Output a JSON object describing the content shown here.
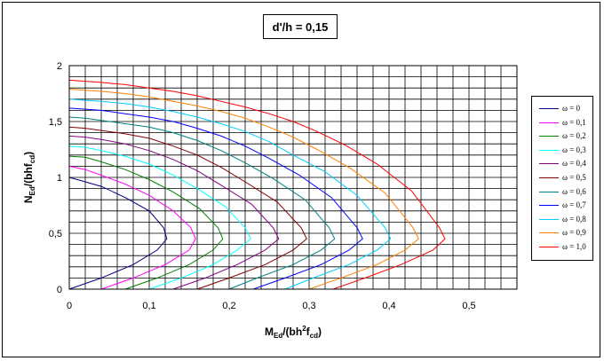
{
  "chart_data": {
    "type": "line",
    "title": "d'/h = 0,15",
    "xlabel": {
      "main": "M",
      "sub1": "Ed",
      "mid": "/(bh",
      "sup": "2",
      "post": "f",
      "sub2": "cd",
      "end": ")"
    },
    "ylabel": {
      "main": "N",
      "sub1": "Ed",
      "mid": "/(bhf",
      "sub2": "cd",
      "end": ")"
    },
    "xlim": [
      0,
      0.56
    ],
    "ylim": [
      0,
      2
    ],
    "xticks": [
      {
        "v": 0,
        "label": "0"
      },
      {
        "v": 0.1,
        "label": "0,1"
      },
      {
        "v": 0.2,
        "label": "0,2"
      },
      {
        "v": 0.3,
        "label": "0,3"
      },
      {
        "v": 0.4,
        "label": "0,4"
      },
      {
        "v": 0.5,
        "label": "0,5"
      }
    ],
    "yticks": [
      {
        "v": 0,
        "label": "0"
      },
      {
        "v": 0.5,
        "label": "0,5"
      },
      {
        "v": 1,
        "label": "1"
      },
      {
        "v": 1.5,
        "label": "1,5"
      },
      {
        "v": 2,
        "label": "2"
      }
    ],
    "grid": true,
    "legend_position": "right",
    "series": [
      {
        "name": "ω = 0",
        "color": "#000080",
        "points": [
          [
            0,
            0
          ],
          [
            0.04,
            0.1
          ],
          [
            0.08,
            0.22
          ],
          [
            0.11,
            0.35
          ],
          [
            0.122,
            0.45
          ],
          [
            0.118,
            0.55
          ],
          [
            0.1,
            0.7
          ],
          [
            0.07,
            0.82
          ],
          [
            0.04,
            0.92
          ],
          [
            0.02,
            0.96
          ],
          [
            0,
            1
          ]
        ]
      },
      {
        "name": "ω = 0,1",
        "color": "#FF00FF",
        "points": [
          [
            0.04,
            0
          ],
          [
            0.08,
            0.1
          ],
          [
            0.12,
            0.22
          ],
          [
            0.15,
            0.35
          ],
          [
            0.158,
            0.45
          ],
          [
            0.152,
            0.55
          ],
          [
            0.13,
            0.7
          ],
          [
            0.1,
            0.84
          ],
          [
            0.07,
            0.94
          ],
          [
            0.04,
            1.02
          ],
          [
            0.02,
            1.07
          ],
          [
            0,
            1.1
          ]
        ]
      },
      {
        "name": "ω = 0,2",
        "color": "#008000",
        "points": [
          [
            0.07,
            0
          ],
          [
            0.11,
            0.1
          ],
          [
            0.15,
            0.22
          ],
          [
            0.18,
            0.35
          ],
          [
            0.192,
            0.45
          ],
          [
            0.186,
            0.55
          ],
          [
            0.163,
            0.72
          ],
          [
            0.13,
            0.87
          ],
          [
            0.1,
            0.98
          ],
          [
            0.07,
            1.07
          ],
          [
            0.04,
            1.14
          ],
          [
            0.02,
            1.18
          ],
          [
            0,
            1.19
          ]
        ]
      },
      {
        "name": "ω = 0,3",
        "color": "#00FFFF",
        "points": [
          [
            0.1,
            0
          ],
          [
            0.14,
            0.1
          ],
          [
            0.18,
            0.22
          ],
          [
            0.21,
            0.35
          ],
          [
            0.227,
            0.45
          ],
          [
            0.22,
            0.55
          ],
          [
            0.195,
            0.74
          ],
          [
            0.16,
            0.9
          ],
          [
            0.13,
            1.02
          ],
          [
            0.1,
            1.12
          ],
          [
            0.07,
            1.19
          ],
          [
            0.04,
            1.24
          ],
          [
            0.02,
            1.27
          ],
          [
            0,
            1.28
          ]
        ]
      },
      {
        "name": "ω = 0,4",
        "color": "#800080",
        "points": [
          [
            0.13,
            0
          ],
          [
            0.17,
            0.1
          ],
          [
            0.21,
            0.22
          ],
          [
            0.245,
            0.35
          ],
          [
            0.262,
            0.45
          ],
          [
            0.255,
            0.55
          ],
          [
            0.228,
            0.76
          ],
          [
            0.19,
            0.93
          ],
          [
            0.16,
            1.06
          ],
          [
            0.13,
            1.16
          ],
          [
            0.1,
            1.24
          ],
          [
            0.07,
            1.3
          ],
          [
            0.04,
            1.34
          ],
          [
            0.02,
            1.36
          ],
          [
            0,
            1.37
          ]
        ]
      },
      {
        "name": "ω = 0,5",
        "color": "#800000",
        "points": [
          [
            0.16,
            0
          ],
          [
            0.2,
            0.1
          ],
          [
            0.245,
            0.22
          ],
          [
            0.28,
            0.35
          ],
          [
            0.297,
            0.45
          ],
          [
            0.29,
            0.55
          ],
          [
            0.26,
            0.78
          ],
          [
            0.22,
            0.96
          ],
          [
            0.19,
            1.09
          ],
          [
            0.16,
            1.2
          ],
          [
            0.13,
            1.28
          ],
          [
            0.1,
            1.35
          ],
          [
            0.07,
            1.39
          ],
          [
            0.04,
            1.42
          ],
          [
            0.02,
            1.44
          ],
          [
            0,
            1.45
          ]
        ]
      },
      {
        "name": "ω = 0,6",
        "color": "#008080",
        "points": [
          [
            0.2,
            0
          ],
          [
            0.235,
            0.1
          ],
          [
            0.28,
            0.22
          ],
          [
            0.315,
            0.35
          ],
          [
            0.332,
            0.45
          ],
          [
            0.325,
            0.55
          ],
          [
            0.295,
            0.8
          ],
          [
            0.255,
            0.99
          ],
          [
            0.22,
            1.13
          ],
          [
            0.19,
            1.24
          ],
          [
            0.16,
            1.33
          ],
          [
            0.13,
            1.4
          ],
          [
            0.1,
            1.45
          ],
          [
            0.07,
            1.48
          ],
          [
            0.04,
            1.51
          ],
          [
            0.02,
            1.53
          ],
          [
            0,
            1.54
          ]
        ]
      },
      {
        "name": "ω = 0,7",
        "color": "#0000FF",
        "points": [
          [
            0.23,
            0
          ],
          [
            0.27,
            0.1
          ],
          [
            0.315,
            0.22
          ],
          [
            0.35,
            0.35
          ],
          [
            0.367,
            0.45
          ],
          [
            0.36,
            0.55
          ],
          [
            0.328,
            0.82
          ],
          [
            0.288,
            1.02
          ],
          [
            0.25,
            1.17
          ],
          [
            0.22,
            1.28
          ],
          [
            0.19,
            1.37
          ],
          [
            0.16,
            1.44
          ],
          [
            0.13,
            1.5
          ],
          [
            0.1,
            1.54
          ],
          [
            0.07,
            1.57
          ],
          [
            0.04,
            1.6
          ],
          [
            0.02,
            1.61
          ],
          [
            0,
            1.62
          ]
        ]
      },
      {
        "name": "ω = 0,8",
        "color": "#00CCFF",
        "points": [
          [
            0.27,
            0
          ],
          [
            0.305,
            0.1
          ],
          [
            0.35,
            0.22
          ],
          [
            0.385,
            0.35
          ],
          [
            0.402,
            0.45
          ],
          [
            0.395,
            0.55
          ],
          [
            0.36,
            0.84
          ],
          [
            0.32,
            1.05
          ],
          [
            0.28,
            1.2
          ],
          [
            0.25,
            1.32
          ],
          [
            0.22,
            1.41
          ],
          [
            0.19,
            1.48
          ],
          [
            0.16,
            1.54
          ],
          [
            0.13,
            1.59
          ],
          [
            0.1,
            1.63
          ],
          [
            0.07,
            1.66
          ],
          [
            0.04,
            1.68
          ],
          [
            0.02,
            1.69
          ],
          [
            0,
            1.7
          ]
        ]
      },
      {
        "name": "ω = 0,9",
        "color": "#FF8000",
        "points": [
          [
            0.3,
            0
          ],
          [
            0.34,
            0.1
          ],
          [
            0.385,
            0.22
          ],
          [
            0.42,
            0.35
          ],
          [
            0.437,
            0.45
          ],
          [
            0.43,
            0.55
          ],
          [
            0.395,
            0.86
          ],
          [
            0.35,
            1.09
          ],
          [
            0.31,
            1.25
          ],
          [
            0.28,
            1.36
          ],
          [
            0.25,
            1.45
          ],
          [
            0.22,
            1.53
          ],
          [
            0.19,
            1.59
          ],
          [
            0.16,
            1.64
          ],
          [
            0.13,
            1.68
          ],
          [
            0.1,
            1.72
          ],
          [
            0.07,
            1.75
          ],
          [
            0.04,
            1.77
          ],
          [
            0.02,
            1.78
          ],
          [
            0,
            1.79
          ]
        ]
      },
      {
        "name": "ω = 1,0",
        "color": "#FF0000",
        "points": [
          [
            0.33,
            0
          ],
          [
            0.37,
            0.1
          ],
          [
            0.415,
            0.22
          ],
          [
            0.455,
            0.35
          ],
          [
            0.47,
            0.45
          ],
          [
            0.463,
            0.55
          ],
          [
            0.428,
            0.88
          ],
          [
            0.385,
            1.12
          ],
          [
            0.345,
            1.29
          ],
          [
            0.31,
            1.41
          ],
          [
            0.28,
            1.5
          ],
          [
            0.25,
            1.57
          ],
          [
            0.22,
            1.63
          ],
          [
            0.19,
            1.68
          ],
          [
            0.16,
            1.73
          ],
          [
            0.13,
            1.77
          ],
          [
            0.1,
            1.8
          ],
          [
            0.07,
            1.83
          ],
          [
            0.04,
            1.85
          ],
          [
            0.02,
            1.86
          ],
          [
            0,
            1.87
          ]
        ]
      }
    ]
  }
}
